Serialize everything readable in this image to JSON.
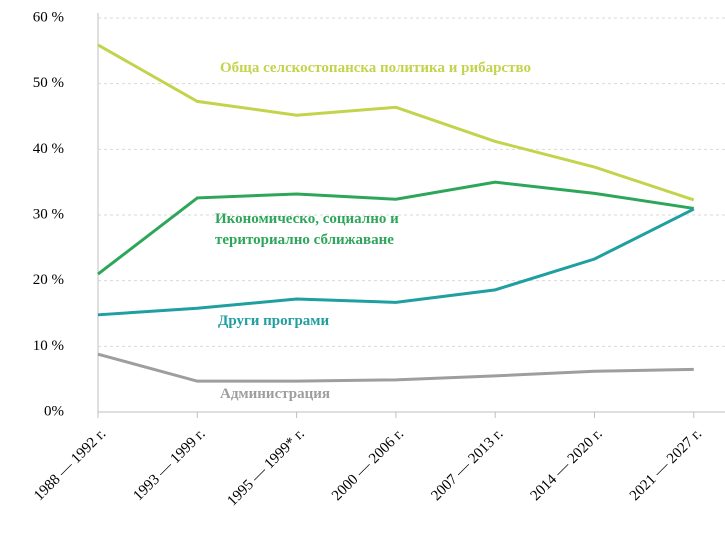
{
  "chart_data": {
    "type": "line",
    "categories": [
      "1988 — 1992 г.",
      "1993 — 1999 г.",
      "1995 — 1999* г.",
      "2000 — 2006 г.",
      "2007 — 2013 г.",
      "2014 — 2020 г.",
      "2021 — 2027 г."
    ],
    "series": [
      {
        "name": "Обща селскостопанска политика и рибарство",
        "color": "#c3d44c",
        "values": [
          55.9,
          47.3,
          45.2,
          46.4,
          41.2,
          37.3,
          32.3
        ]
      },
      {
        "name": "Икономическо, социално и териториално сближаване",
        "color": "#2ea65a",
        "values": [
          21,
          32.6,
          33.2,
          32.4,
          35,
          33.3,
          31
        ]
      },
      {
        "name": "Други програми",
        "color": "#1f9fa0",
        "values": [
          14.8,
          15.8,
          17.2,
          16.7,
          18.6,
          23.3,
          30.9
        ]
      },
      {
        "name": "Администрация",
        "color": "#9e9e9e",
        "values": [
          8.8,
          4.7,
          4.7,
          4.9,
          5.5,
          6.2,
          6.5
        ]
      }
    ],
    "ylim": [
      0,
      60
    ],
    "yticks": [
      {
        "value": 0,
        "label": "0%"
      },
      {
        "value": 10,
        "label": "10 %"
      },
      {
        "value": 20,
        "label": "20 %"
      },
      {
        "value": 30,
        "label": "30 %"
      },
      {
        "value": 40,
        "label": "40 %"
      },
      {
        "value": 50,
        "label": "50 %"
      },
      {
        "value": 60,
        "label": "60 %"
      }
    ],
    "grid": true
  }
}
